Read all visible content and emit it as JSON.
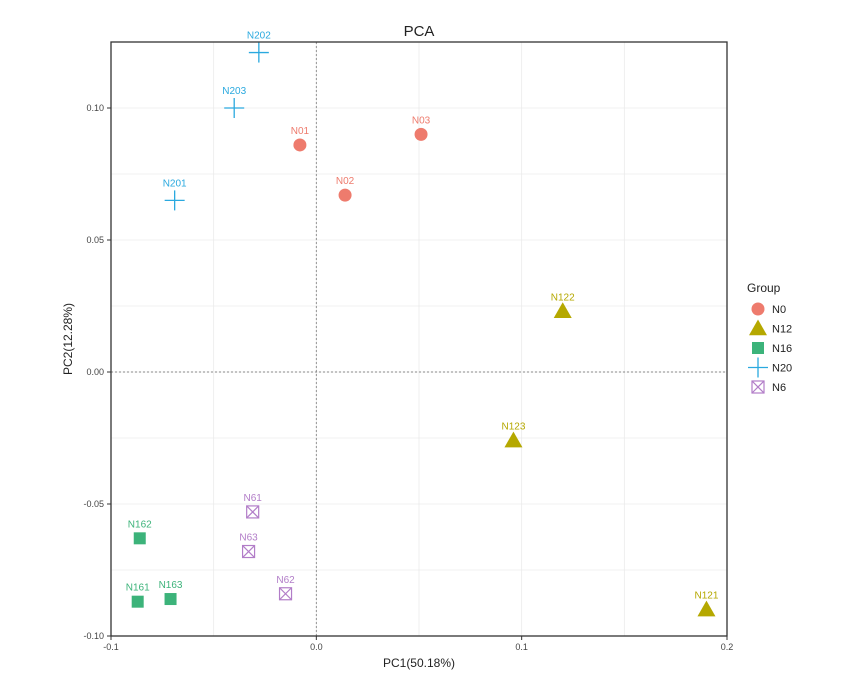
{
  "chart_data": {
    "type": "scatter",
    "title": "PCA",
    "xlabel": "PC1(50.18%)",
    "ylabel": "PC2(12.28%)",
    "xlim": [
      -0.1,
      0.2
    ],
    "ylim": [
      -0.1,
      0.125
    ],
    "x_ticks": [
      -0.1,
      0.0,
      0.1,
      0.2
    ],
    "x_tick_labels": [
      "-0.1",
      "0.0",
      "0.1",
      "0.2"
    ],
    "y_ticks": [
      -0.1,
      -0.05,
      0.0,
      0.05,
      0.1
    ],
    "y_tick_labels": [
      "-0.10",
      "-0.05",
      "0.00",
      "0.05",
      "0.10"
    ],
    "grid": true,
    "reference_lines": {
      "x": 0,
      "y": 0
    },
    "legend": {
      "title": "Group",
      "position": "right"
    },
    "series": [
      {
        "name": "N0",
        "marker": "circle",
        "color": "#EE7B6D",
        "points": [
          {
            "label": "N01",
            "x": -0.008,
            "y": 0.086
          },
          {
            "label": "N02",
            "x": 0.014,
            "y": 0.067
          },
          {
            "label": "N03",
            "x": 0.051,
            "y": 0.09
          }
        ]
      },
      {
        "name": "N12",
        "marker": "triangle",
        "color": "#B5A800",
        "points": [
          {
            "label": "N121",
            "x": 0.19,
            "y": -0.09
          },
          {
            "label": "N122",
            "x": 0.12,
            "y": 0.023
          },
          {
            "label": "N123",
            "x": 0.096,
            "y": -0.026
          }
        ]
      },
      {
        "name": "N16",
        "marker": "square",
        "color": "#3CB37A",
        "points": [
          {
            "label": "N161",
            "x": -0.087,
            "y": -0.087
          },
          {
            "label": "N162",
            "x": -0.086,
            "y": -0.063
          },
          {
            "label": "N163",
            "x": -0.071,
            "y": -0.086
          }
        ]
      },
      {
        "name": "N20",
        "marker": "plus",
        "color": "#2AA9DF",
        "points": [
          {
            "label": "N201",
            "x": -0.069,
            "y": 0.065
          },
          {
            "label": "N202",
            "x": -0.028,
            "y": 0.121
          },
          {
            "label": "N203",
            "x": -0.04,
            "y": 0.1
          }
        ]
      },
      {
        "name": "N6",
        "marker": "boxcross",
        "color": "#B27DC8",
        "points": [
          {
            "label": "N61",
            "x": -0.031,
            "y": -0.053
          },
          {
            "label": "N62",
            "x": -0.015,
            "y": -0.084
          },
          {
            "label": "N63",
            "x": -0.033,
            "y": -0.068
          }
        ]
      }
    ]
  }
}
